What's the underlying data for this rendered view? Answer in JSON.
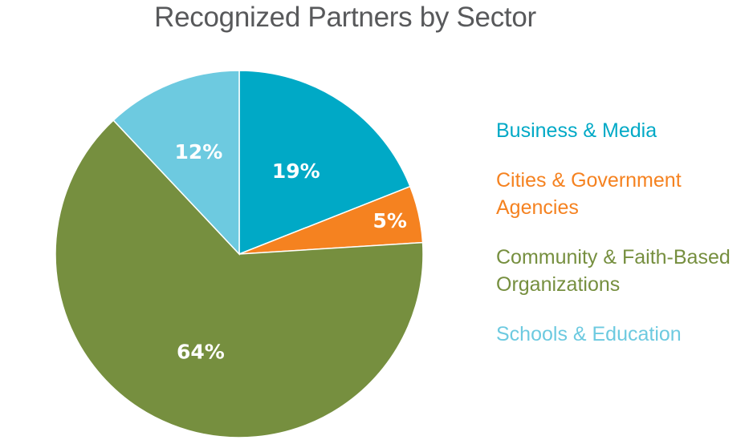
{
  "chart_data": {
    "type": "pie",
    "title": "Recognized Partners by Sector",
    "slices": [
      {
        "label": "Business & Media",
        "legend_lines": [
          "Business & Media"
        ],
        "value": 19,
        "value_label": "19%",
        "color": "#00a9c6"
      },
      {
        "label": "Cities & Government Agencies",
        "legend_lines": [
          "Cities & Government",
          "Agencies"
        ],
        "value": 5,
        "value_label": "5%",
        "color": "#f58220"
      },
      {
        "label": "Community & Faith-Based Organizations",
        "legend_lines": [
          "Community & Faith-Based",
          "Organizations"
        ],
        "value": 64,
        "value_label": "64%",
        "color": "#768f3f"
      },
      {
        "label": "Schools & Education",
        "legend_lines": [
          "Schools & Education"
        ],
        "value": 12,
        "value_label": "12%",
        "color": "#6dcae0"
      }
    ],
    "legend_position": "right"
  }
}
